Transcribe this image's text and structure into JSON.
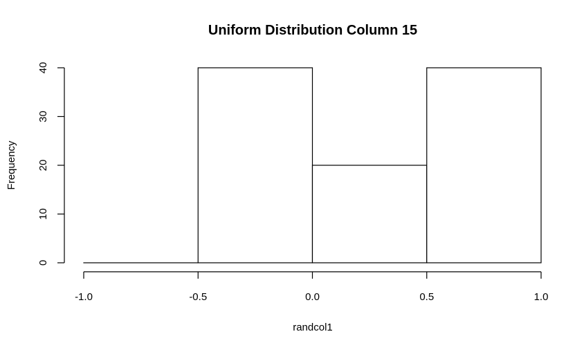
{
  "chart_data": {
    "type": "bar",
    "subtype": "histogram",
    "title": "Uniform Distribution Column 15",
    "xlabel": "randcol1",
    "ylabel": "Frequency",
    "bins": [
      {
        "x0": -1.0,
        "x1": -0.5,
        "count": 0
      },
      {
        "x0": -0.5,
        "x1": 0.0,
        "count": 40
      },
      {
        "x0": 0.0,
        "x1": 0.5,
        "count": 20
      },
      {
        "x0": 0.5,
        "x1": 1.0,
        "count": 40
      }
    ],
    "xlim": [
      -1.0,
      1.0
    ],
    "ylim": [
      0,
      40
    ],
    "x_ticks": [
      -1.0,
      -0.5,
      0.0,
      0.5,
      1.0
    ],
    "x_tick_labels": [
      "-1.0",
      "-0.5",
      "0.0",
      "0.5",
      "1.0"
    ],
    "y_ticks": [
      0,
      10,
      20,
      30,
      40
    ],
    "y_tick_labels": [
      "0",
      "10",
      "20",
      "30",
      "40"
    ],
    "grid": false,
    "bar_fill": "#ffffff",
    "bar_stroke": "#000000"
  }
}
